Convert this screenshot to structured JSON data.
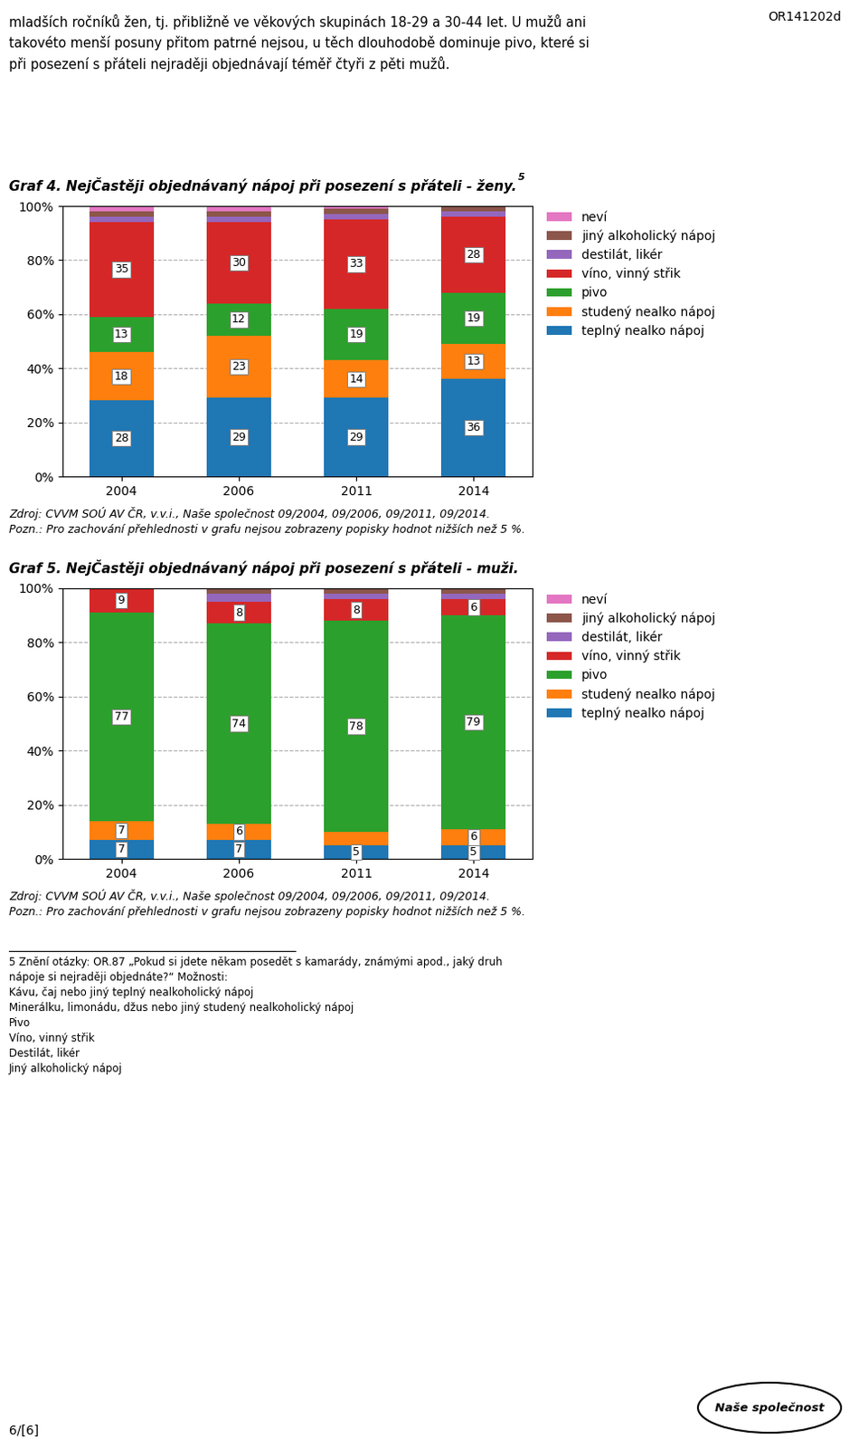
{
  "annotations": [
    "OR141202d",
    "mladších ročníků žen, tj. přibližně ve věkových skupinách 18-29 a 30-44 let. U mužů ani\ntakovéto menší posuny přitom patrné nejsou, u těch dlouhodobě dominuje pivo, které si\npři posezení s přáteli nejraději objednávají téměř čtyři z pěti mužů.",
    "5 Znění otázky: OR.87 „Pokud si jdete někam posedět s kamarády, známými apod., jaký druh\nnápoje si nejraději objednáte?“ Možnosti:\nKávu, čaj nebo jiný teplný nealkoholický nápoj\nMinerálku, limonádu, džus nebo jiný studený nealkoholický nápoj\nPivo\nVíno, vinný střik\nDestilát, likér\nJiný alkoholický nápoj",
    "6/[6]",
    "Naše společnost"
  ],
  "chart_data": [
    {
      "type": "bar",
      "stacked": true,
      "title": "Graf 4. NejČastěji objednávaný nápoj při posezení s přáteli - ženy.",
      "annotations": [
        "5",
        "Zdroj: CVVM SOÚ AV ČR, v.v.i., Naše společnost 09/2004, 09/2006, 09/2011, 09/2014.\nPozn.: Pro zachování přehlednosti v grafu nejsou zobrazeny popisky hodnot nižších než 5 %."
      ],
      "categories": [
        "2004",
        "2006",
        "2011",
        "2014"
      ],
      "ylim": [
        0,
        100
      ],
      "yticks": [
        {
          "value": 0,
          "label": "0%"
        },
        {
          "value": 20,
          "label": "20%"
        },
        {
          "value": 40,
          "label": "40%"
        },
        {
          "value": 60,
          "label": "60%"
        },
        {
          "value": 80,
          "label": "80%"
        },
        {
          "value": 100,
          "label": "100%"
        }
      ],
      "grid": true,
      "legend": "upper left",
      "series": [
        {
          "name": "teplný nealko nápoj",
          "values": [
            28,
            29,
            29,
            36
          ],
          "data_labels": true
        },
        {
          "name": "studený nealko nápoj",
          "values": [
            18,
            23,
            14,
            13
          ],
          "data_labels": true
        },
        {
          "name": "pivo",
          "values": [
            13,
            12,
            19,
            19
          ],
          "data_labels": true
        },
        {
          "name": "víno, vinný střik",
          "values": [
            35,
            30,
            33,
            28
          ],
          "data_labels": true
        },
        {
          "name": "destilát, likér",
          "values": [
            2,
            2,
            2,
            2
          ]
        },
        {
          "name": "jiný alkoholický nápoj",
          "values": [
            2,
            2,
            2,
            2
          ]
        },
        {
          "name": "neví",
          "values": [
            2,
            2,
            1,
            0
          ]
        }
      ]
    },
    {
      "type": "bar",
      "stacked": true,
      "title": "Graf 5. NejČastěji objednávaný nápoj při posezení s přáteli - muži.",
      "annotations": [
        "Zdroj: CVVM SOÚ AV ČR, v.v.i., Naše společnost 09/2004, 09/2006, 09/2011, 09/2014.\nPozn.: Pro zachování přehlednosti v grafu nejsou zobrazeny popisky hodnot nižších než 5 %."
      ],
      "categories": [
        "2004",
        "2006",
        "2011",
        "2014"
      ],
      "ylim": [
        0,
        100
      ],
      "yticks": [
        {
          "value": 0,
          "label": "0%"
        },
        {
          "value": 20,
          "label": "20%"
        },
        {
          "value": 40,
          "label": "40%"
        },
        {
          "value": 60,
          "label": "60%"
        },
        {
          "value": 80,
          "label": "80%"
        },
        {
          "value": 100,
          "label": "100%"
        }
      ],
      "grid": true,
      "legend": "upper left",
      "series": [
        {
          "name": "teplný nealko nápoj",
          "values": [
            7,
            7,
            5,
            5
          ],
          "data_labels": true
        },
        {
          "name": "studený nealko nápoj",
          "values": [
            7,
            6,
            5,
            6
          ],
          "data_labels": true,
          "value_labels": [
            "7",
            "6",
            null,
            "6"
          ]
        },
        {
          "name": "pivo",
          "values": [
            77,
            74,
            78,
            79
          ],
          "data_labels": true
        },
        {
          "name": "víno, vinný střik",
          "values": [
            9,
            8,
            8,
            6
          ],
          "data_labels": true
        },
        {
          "name": "destilát, likér",
          "values": [
            0,
            3,
            2,
            2
          ]
        },
        {
          "name": "jiný alkoholický nápoj",
          "values": [
            0,
            2,
            2,
            2
          ]
        },
        {
          "name": "neví",
          "values": [
            0,
            0,
            0,
            0
          ]
        }
      ]
    }
  ]
}
